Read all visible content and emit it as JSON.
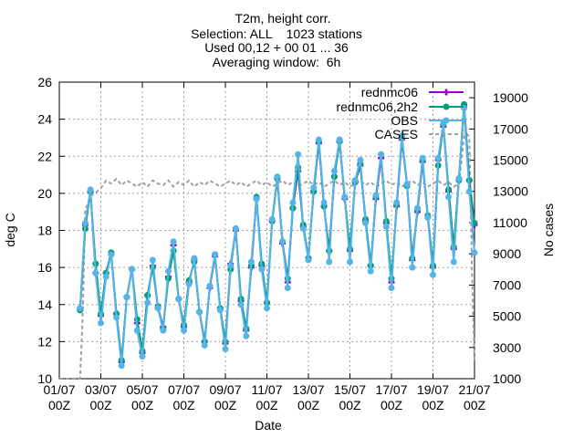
{
  "chart_data": {
    "type": "line",
    "title_lines": [
      "T2m, height corr.",
      "Selection: ALL    1023 stations",
      "Used 00,12 + 00 01 ... 36",
      "Averaging window:  6h"
    ],
    "xlabel": "Date",
    "ylabel": "deg C",
    "y2label": "No cases",
    "x_range_hours": [
      0,
      480
    ],
    "ylim": [
      10,
      26
    ],
    "y2lim": [
      1000,
      20000
    ],
    "y_ticks": [
      10,
      12,
      14,
      16,
      18,
      20,
      22,
      24,
      26
    ],
    "y2_ticks": [
      1000,
      3000,
      5000,
      7000,
      9000,
      11000,
      13000,
      15000,
      17000,
      19000
    ],
    "x_ticks": [
      {
        "hour": 0,
        "top": "01/07",
        "bottom": "00Z"
      },
      {
        "hour": 48,
        "top": "03/07",
        "bottom": "00Z"
      },
      {
        "hour": 96,
        "top": "05/07",
        "bottom": "00Z"
      },
      {
        "hour": 144,
        "top": "07/07",
        "bottom": "00Z"
      },
      {
        "hour": 192,
        "top": "09/07",
        "bottom": "00Z"
      },
      {
        "hour": 240,
        "top": "11/07",
        "bottom": "00Z"
      },
      {
        "hour": 288,
        "top": "13/07",
        "bottom": "00Z"
      },
      {
        "hour": 336,
        "top": "15/07",
        "bottom": "00Z"
      },
      {
        "hour": 384,
        "top": "17/07",
        "bottom": "00Z"
      },
      {
        "hour": 432,
        "top": "19/07",
        "bottom": "00Z"
      },
      {
        "hour": 480,
        "top": "21/07",
        "bottom": "00Z"
      }
    ],
    "grid": true,
    "legend_position": "top-right",
    "x_hours": [
      24,
      30,
      36,
      42,
      48,
      54,
      60,
      66,
      72,
      78,
      84,
      90,
      96,
      102,
      108,
      114,
      120,
      126,
      132,
      138,
      144,
      150,
      156,
      162,
      168,
      174,
      180,
      186,
      192,
      198,
      204,
      210,
      216,
      222,
      228,
      234,
      240,
      246,
      252,
      258,
      264,
      270,
      276,
      282,
      288,
      294,
      300,
      306,
      312,
      318,
      324,
      330,
      336,
      342,
      348,
      354,
      360,
      366,
      372,
      378,
      384,
      390,
      396,
      402,
      408,
      414,
      420,
      426,
      432,
      438,
      444,
      450,
      456,
      462,
      468,
      474,
      480
    ],
    "series": [
      {
        "name": "rednmc06",
        "color": "#9400d3",
        "marker": "plus",
        "values": [
          13.8,
          18.3,
          20.1,
          15.7,
          13.4,
          15.7,
          16.7,
          13.5,
          10.9,
          14.4,
          15.9,
          13.0,
          11.4,
          14.5,
          16.1,
          13.8,
          12.8,
          15.5,
          17.2,
          14.3,
          12.8,
          15.2,
          16.4,
          13.6,
          12.0,
          14.9,
          16.6,
          13.8,
          11.9,
          16.2,
          18.0,
          14.2,
          12.6,
          16.0,
          19.7,
          16.1,
          14.1,
          18.5,
          20.8,
          17.3,
          15.2,
          19.2,
          21.2,
          18.2,
          16.5,
          20.1,
          22.7,
          19.3,
          16.9,
          20.9,
          22.8,
          19.7,
          16.9,
          20.6,
          21.5,
          18.5,
          16.1,
          19.7,
          21.9,
          18.4,
          15.2,
          19.3,
          22.9,
          20.5,
          16.4,
          19.0,
          21.7,
          18.7,
          16.0,
          21.8,
          23.6,
          20.1,
          17.0,
          20.8,
          24.7,
          20.7,
          18.3
        ]
      },
      {
        "name": "rednmc06,2h2",
        "color": "#009e73",
        "marker": "filled-circle",
        "values": [
          13.7,
          18.1,
          20.1,
          16.2,
          13.5,
          15.7,
          16.8,
          13.5,
          11.0,
          14.4,
          15.9,
          13.2,
          11.5,
          14.5,
          16.0,
          13.9,
          12.7,
          15.4,
          16.9,
          14.3,
          12.9,
          15.3,
          16.3,
          13.6,
          12.0,
          15.0,
          16.7,
          13.8,
          12.0,
          15.9,
          18.1,
          14.3,
          12.7,
          16.1,
          19.8,
          16.2,
          14.1,
          18.5,
          20.8,
          17.4,
          15.4,
          19.2,
          21.4,
          18.3,
          16.5,
          20.1,
          22.8,
          19.3,
          16.9,
          20.9,
          22.8,
          19.8,
          17.0,
          20.6,
          21.6,
          18.6,
          16.1,
          19.8,
          22.1,
          18.5,
          15.4,
          19.4,
          23.0,
          20.4,
          16.5,
          19.1,
          21.8,
          18.8,
          16.1,
          21.5,
          23.7,
          20.2,
          17.1,
          20.7,
          24.8,
          20.7,
          18.4
        ]
      },
      {
        "name": "OBS",
        "color": "#56b4e9",
        "marker": "filled-circle",
        "values": [
          13.8,
          18.4,
          20.2,
          15.7,
          13.0,
          15.5,
          16.7,
          13.3,
          10.7,
          14.4,
          15.9,
          12.6,
          11.2,
          14.1,
          16.4,
          13.8,
          12.6,
          15.8,
          17.4,
          14.3,
          12.6,
          15.1,
          16.5,
          13.6,
          11.8,
          15.0,
          16.7,
          13.7,
          11.6,
          16.1,
          18.1,
          14.0,
          12.3,
          16.3,
          19.7,
          15.9,
          13.8,
          18.6,
          20.9,
          17.4,
          14.9,
          19.5,
          22.1,
          18.1,
          16.4,
          20.3,
          22.9,
          19.5,
          16.3,
          21.2,
          22.9,
          19.8,
          16.3,
          20.7,
          21.8,
          18.4,
          15.8,
          19.9,
          22.1,
          18.2,
          14.9,
          19.5,
          23.1,
          20.5,
          16.0,
          19.2,
          21.9,
          18.7,
          15.6,
          21.9,
          23.8,
          19.8,
          16.3,
          20.8,
          24.6,
          20.1,
          16.8
        ]
      },
      {
        "name": "CASES",
        "color": "#a0a0a0",
        "marker": "none",
        "dashed": true,
        "axis": "y2",
        "x": [
          0,
          24,
          27,
          30,
          36,
          42,
          48,
          54,
          60,
          66,
          72,
          78,
          84,
          90,
          96,
          102,
          108,
          114,
          120,
          126,
          132,
          138,
          144,
          150,
          156,
          162,
          168,
          174,
          180,
          186,
          192,
          198,
          204,
          210,
          216,
          222,
          228,
          234,
          240,
          246,
          252,
          258,
          264,
          270,
          276,
          282,
          288,
          294,
          300,
          306,
          312,
          318,
          324,
          330,
          336,
          342,
          348,
          354,
          360,
          366,
          372,
          378,
          384,
          390,
          396,
          402,
          408,
          414,
          420,
          426,
          432,
          438,
          444,
          450,
          456,
          462,
          468,
          471,
          474,
          477,
          480
        ],
        "values": [
          1000,
          1000,
          5000,
          11800,
          12700,
          12900,
          13200,
          13700,
          13500,
          13800,
          13400,
          13700,
          13500,
          13300,
          13600,
          13300,
          13700,
          13500,
          13400,
          13700,
          13300,
          13600,
          13400,
          13700,
          13300,
          13600,
          13400,
          13700,
          13500,
          13300,
          13500,
          13700,
          13400,
          13600,
          13300,
          13500,
          13700,
          13400,
          13600,
          13300,
          13500,
          13700,
          13400,
          13600,
          13300,
          13500,
          13700,
          13400,
          13600,
          13300,
          13500,
          13700,
          13400,
          13600,
          13300,
          13500,
          13700,
          13400,
          13600,
          13300,
          13500,
          13700,
          13400,
          13600,
          13300,
          13500,
          13700,
          13400,
          13600,
          13300,
          13500,
          13700,
          13400,
          13600,
          13300,
          13500,
          16500,
          16700,
          16500,
          8000,
          2000
        ]
      }
    ]
  }
}
